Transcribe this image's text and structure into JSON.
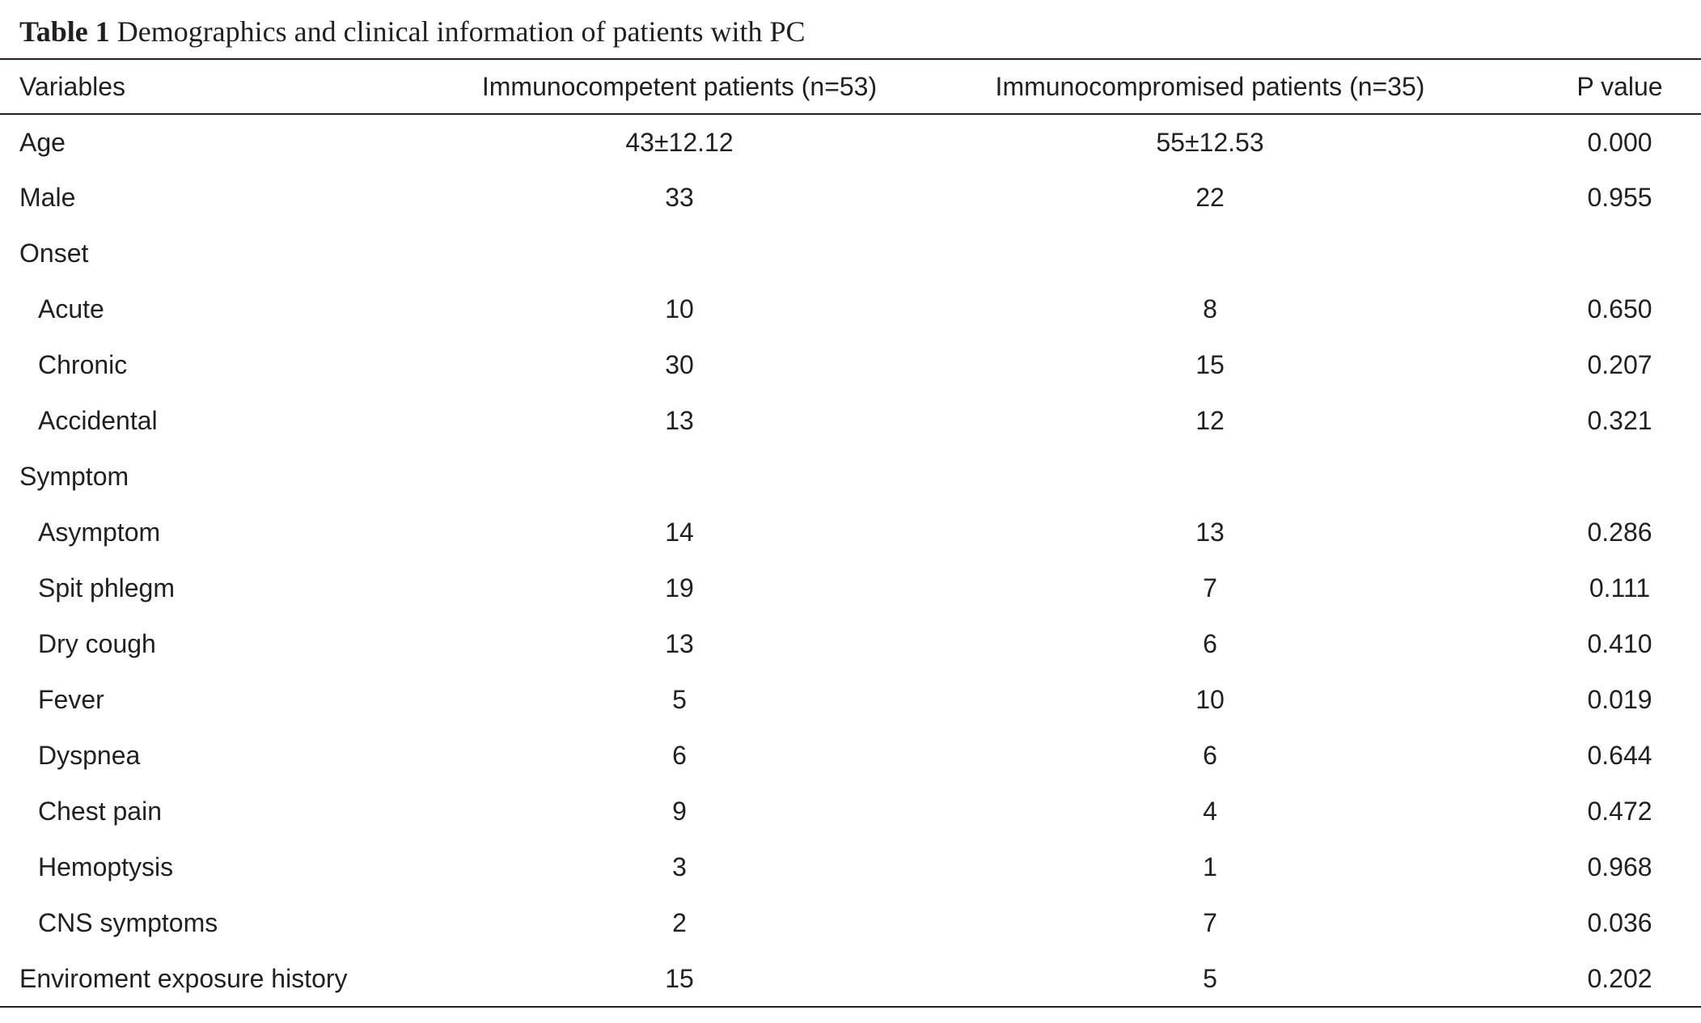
{
  "caption": {
    "label": "Table 1",
    "text": "Demographics and clinical information of patients with PC"
  },
  "table": {
    "headers": [
      "Variables",
      "Immunocompetent patients (n=53)",
      "Immunocompromised patients (n=35)",
      "P value"
    ],
    "rows": [
      {
        "variable": "Age",
        "competent": "43±12.12",
        "compromised": "55±12.53",
        "p": "0.000",
        "indent": false
      },
      {
        "variable": "Male",
        "competent": "33",
        "compromised": "22",
        "p": "0.955",
        "indent": false
      },
      {
        "variable": "Onset",
        "competent": "",
        "compromised": "",
        "p": "",
        "indent": false
      },
      {
        "variable": "Acute",
        "competent": "10",
        "compromised": "8",
        "p": "0.650",
        "indent": true
      },
      {
        "variable": "Chronic",
        "competent": "30",
        "compromised": "15",
        "p": "0.207",
        "indent": true
      },
      {
        "variable": "Accidental",
        "competent": "13",
        "compromised": "12",
        "p": "0.321",
        "indent": true
      },
      {
        "variable": "Symptom",
        "competent": "",
        "compromised": "",
        "p": "",
        "indent": false
      },
      {
        "variable": "Asymptom",
        "competent": "14",
        "compromised": "13",
        "p": "0.286",
        "indent": true
      },
      {
        "variable": "Spit phlegm",
        "competent": "19",
        "compromised": "7",
        "p": "0.111",
        "indent": true
      },
      {
        "variable": "Dry cough",
        "competent": "13",
        "compromised": "6",
        "p": "0.410",
        "indent": true
      },
      {
        "variable": "Fever",
        "competent": "5",
        "compromised": "10",
        "p": "0.019",
        "indent": true
      },
      {
        "variable": "Dyspnea",
        "competent": "6",
        "compromised": "6",
        "p": "0.644",
        "indent": true
      },
      {
        "variable": "Chest pain",
        "competent": "9",
        "compromised": "4",
        "p": "0.472",
        "indent": true
      },
      {
        "variable": "Hemoptysis",
        "competent": "3",
        "compromised": "1",
        "p": "0.968",
        "indent": true
      },
      {
        "variable": "CNS symptoms",
        "competent": "2",
        "compromised": "7",
        "p": "0.036",
        "indent": true
      },
      {
        "variable": "Enviroment exposure history",
        "competent": "15",
        "compromised": "5",
        "p": "0.202",
        "indent": false
      }
    ]
  }
}
